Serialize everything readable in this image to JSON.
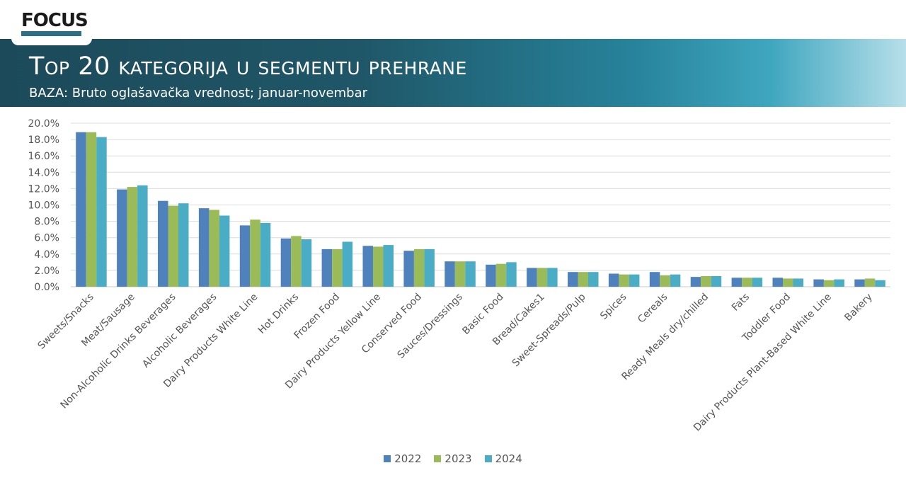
{
  "header": {
    "logo_text": "FOCUS",
    "title": "Top 20 kategorija u segmentu prehrane",
    "subtitle": "BAZA: Bruto oglašavačka vrednost; januar-novembar"
  },
  "colors": {
    "2022": "#4f81bd",
    "2023": "#9bbb59",
    "2024": "#4bacc6"
  },
  "chart_data": {
    "type": "bar",
    "title": "Top 20 kategorija u segmentu prehrane",
    "subtitle": "BAZA: Bruto oglašavačka vrednost; januar-novembar",
    "xlabel": "",
    "ylabel": "",
    "ylim": [
      0,
      20
    ],
    "yticks": [
      "0.0%",
      "2.0%",
      "4.0%",
      "6.0%",
      "8.0%",
      "10.0%",
      "12.0%",
      "14.0%",
      "16.0%",
      "18.0%",
      "20.0%"
    ],
    "grid": true,
    "legend_position": "bottom",
    "categories": [
      "Sweets/Snacks",
      "Meat/Sausage",
      "Non-Alcoholic Drinks Beverages",
      "Alcoholic Beverages",
      "Dairy Products White Line",
      "Hot Drinks",
      "Frozen Food",
      "Dairy Products Yellow Line",
      "Conserved Food",
      "Sauces/Dressings",
      "Basic Food",
      "Bread/Cakes1",
      "Sweet-Spreads/Pulp",
      "Spices",
      "Cereals",
      "Ready Meals dry/chilled",
      "Fats",
      "Toddler Food",
      "Dairy Products Plant-Based White Line",
      "Bakery"
    ],
    "series": [
      {
        "name": "2022",
        "values": [
          18.9,
          11.9,
          10.5,
          9.6,
          7.5,
          5.9,
          4.6,
          5.0,
          4.4,
          3.1,
          2.7,
          2.3,
          1.8,
          1.6,
          1.8,
          1.2,
          1.1,
          1.1,
          0.9,
          0.9
        ]
      },
      {
        "name": "2023",
        "values": [
          18.9,
          12.2,
          9.9,
          9.4,
          8.2,
          6.2,
          4.6,
          4.9,
          4.6,
          3.1,
          2.8,
          2.3,
          1.8,
          1.5,
          1.4,
          1.3,
          1.1,
          1.0,
          0.8,
          1.0
        ]
      },
      {
        "name": "2024",
        "values": [
          18.3,
          12.4,
          10.2,
          8.7,
          7.8,
          5.8,
          5.5,
          5.1,
          4.6,
          3.1,
          3.0,
          2.3,
          1.8,
          1.5,
          1.5,
          1.3,
          1.1,
          1.0,
          0.9,
          0.8
        ]
      }
    ]
  }
}
